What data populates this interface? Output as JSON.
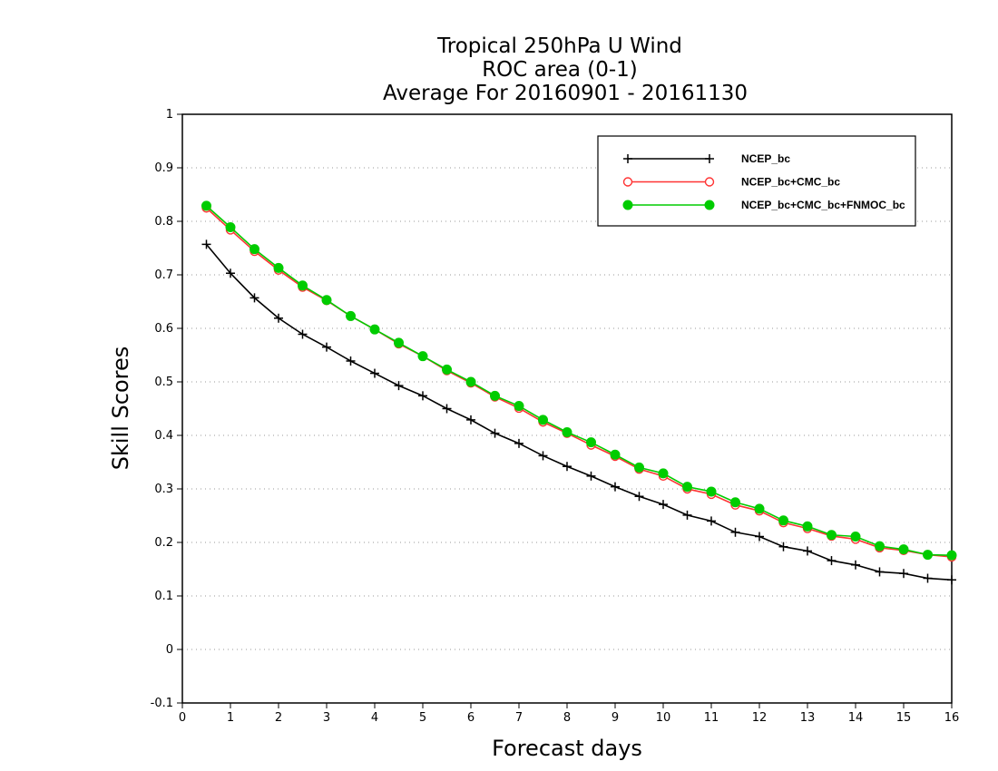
{
  "chart_data": {
    "type": "line",
    "title_lines": [
      "Tropical 250hPa U Wind",
      "ROC area (0-1)",
      "Average For 20160901 - 20161130"
    ],
    "xlabel": "Forecast days",
    "ylabel": "Skill Scores",
    "xlim": [
      0,
      16
    ],
    "ylim": [
      -0.1,
      1
    ],
    "xticks": [
      0,
      1,
      2,
      3,
      4,
      5,
      6,
      7,
      8,
      9,
      10,
      11,
      12,
      13,
      14,
      15,
      16
    ],
    "yticks": [
      -0.1,
      0,
      0.1,
      0.2,
      0.3,
      0.4,
      0.5,
      0.6,
      0.7,
      0.8,
      0.9,
      1
    ],
    "ytick_labels": [
      "-0.1",
      "0",
      "0.1",
      "0.2",
      "0.3",
      "0.4",
      "0.5",
      "0.6",
      "0.7",
      "0.8",
      "0.9",
      "1"
    ],
    "grid": "horizontal dotted",
    "legend_position": "top-right",
    "x": [
      0.5,
      1,
      1.5,
      2,
      2.5,
      3,
      3.5,
      4,
      4.5,
      5,
      5.5,
      6,
      6.5,
      7,
      7.5,
      8,
      8.5,
      9,
      9.5,
      10,
      10.5,
      11,
      11.5,
      12,
      12.5,
      13,
      13.5,
      14,
      14.5,
      15,
      15.5,
      16
    ],
    "series": [
      {
        "name": "NCEP_bc",
        "color": "#000000",
        "marker": "plus",
        "values": [
          0.757,
          0.703,
          0.657,
          0.619,
          0.589,
          0.565,
          0.539,
          0.516,
          0.493,
          0.474,
          0.45,
          0.429,
          0.404,
          0.385,
          0.362,
          0.342,
          0.324,
          0.304,
          0.286,
          0.271,
          0.251,
          0.24,
          0.219,
          0.211,
          0.192,
          0.184,
          0.166,
          0.158,
          0.145,
          0.142,
          0.133,
          0.13
        ]
      },
      {
        "name": "NCEP_bc+CMC_bc",
        "color": "#ff3333",
        "marker": "open-circle",
        "values": [
          0.825,
          0.784,
          0.744,
          0.709,
          0.677,
          0.652,
          0.623,
          0.598,
          0.571,
          0.548,
          0.521,
          0.498,
          0.472,
          0.451,
          0.425,
          0.404,
          0.382,
          0.361,
          0.337,
          0.324,
          0.3,
          0.29,
          0.27,
          0.259,
          0.237,
          0.226,
          0.212,
          0.206,
          0.19,
          0.185,
          0.177,
          0.173
        ]
      },
      {
        "name": "NCEP_bc+CMC_bc+FNMOC_bc",
        "color": "#00cc00",
        "marker": "filled-circle",
        "values": [
          0.829,
          0.789,
          0.748,
          0.713,
          0.68,
          0.653,
          0.623,
          0.598,
          0.573,
          0.548,
          0.523,
          0.5,
          0.474,
          0.455,
          0.429,
          0.406,
          0.387,
          0.364,
          0.34,
          0.329,
          0.304,
          0.295,
          0.275,
          0.263,
          0.241,
          0.23,
          0.214,
          0.211,
          0.193,
          0.187,
          0.177,
          0.176
        ]
      }
    ]
  }
}
